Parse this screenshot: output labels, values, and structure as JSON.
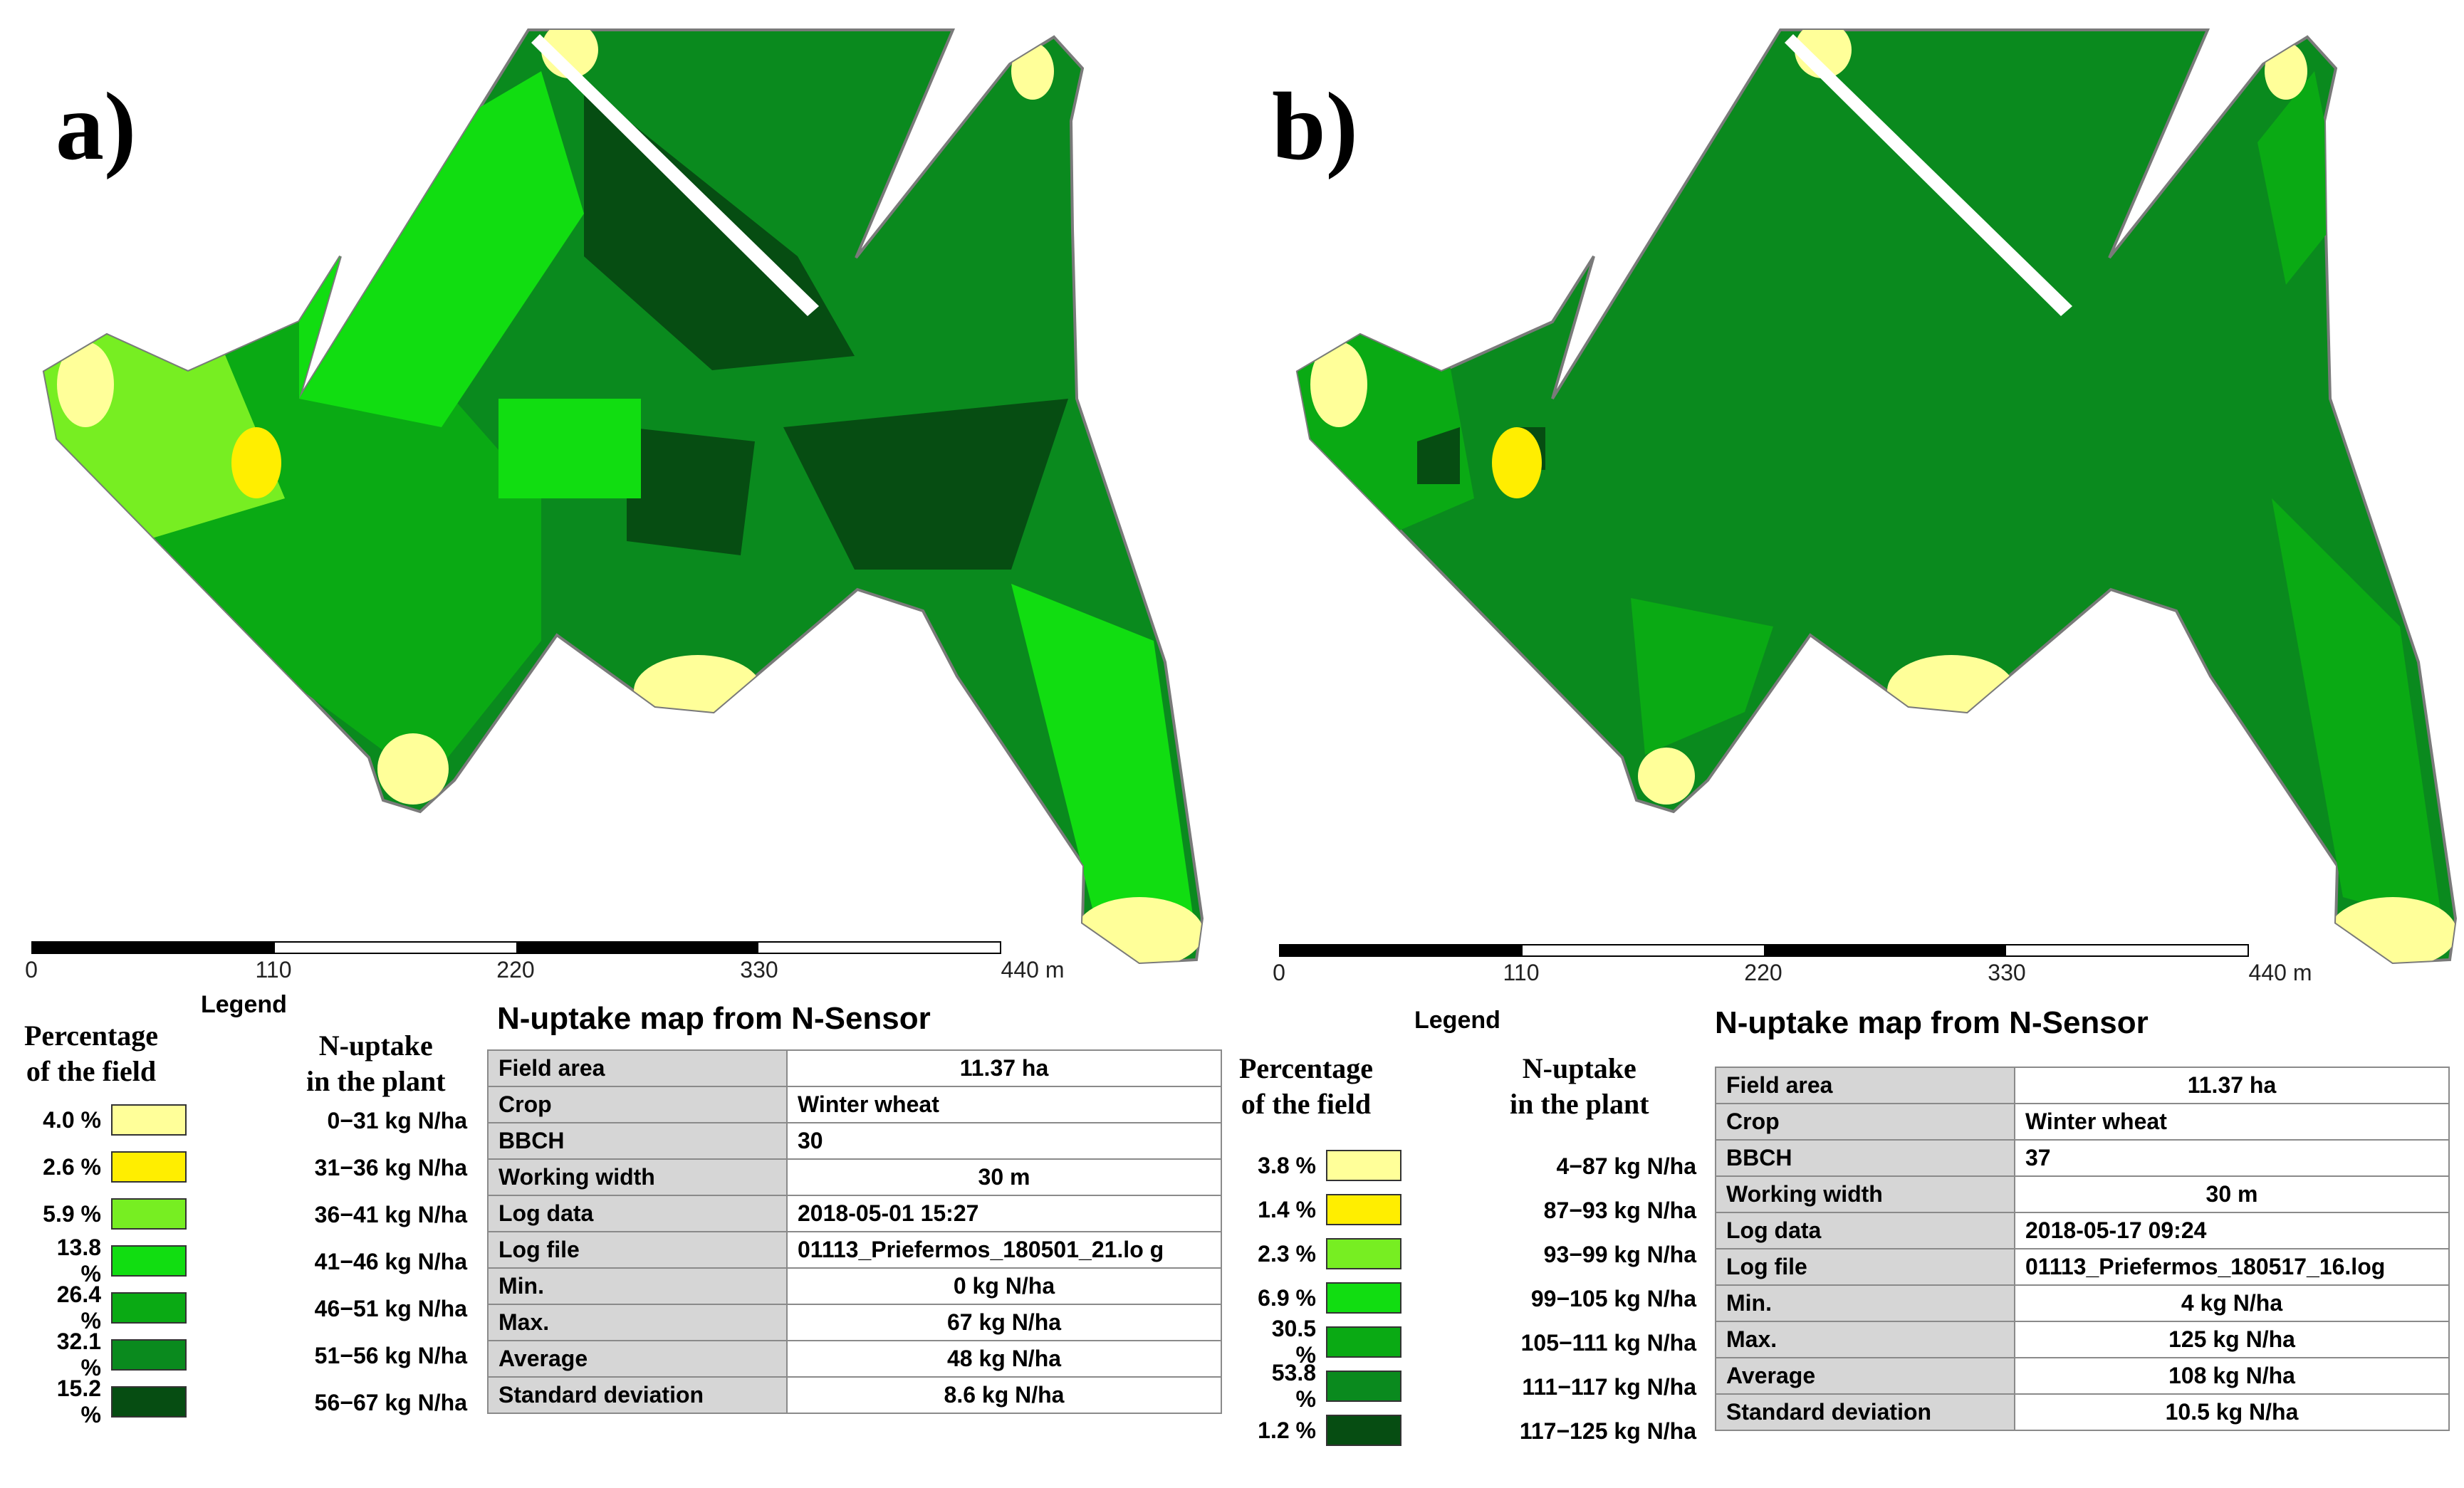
{
  "figure": {
    "panels": [
      {
        "label": "a)",
        "scale": {
          "ticks": [
            "0",
            "110",
            "220",
            "330",
            "440 m"
          ]
        },
        "legend": {
          "title": "Legend",
          "percent_header": "Percentage\nof the field",
          "uptake_header": "N-uptake\nin the plant",
          "classes": [
            {
              "percent": "4.0 %",
              "range": "0−31 kg N/ha",
              "color": "#ffff99"
            },
            {
              "percent": "2.6 %",
              "range": "31−36 kg N/ha",
              "color": "#ffee00"
            },
            {
              "percent": "5.9 %",
              "range": "36−41 kg N/ha",
              "color": "#77ee22"
            },
            {
              "percent": "13.8 %",
              "range": "41−46 kg N/ha",
              "color": "#11dd11"
            },
            {
              "percent": "26.4 %",
              "range": "46−51 kg N/ha",
              "color": "#0aaa14"
            },
            {
              "percent": "32.1 %",
              "range": "51−56 kg N/ha",
              "color": "#0a8a1e"
            },
            {
              "percent": "15.2 %",
              "range": "56−67 kg N/ha",
              "color": "#064d12"
            }
          ]
        },
        "info": {
          "title": "N-uptake map from N-Sensor",
          "rows": [
            {
              "key": "Field area",
              "value": "11.37 ha"
            },
            {
              "key": "Crop",
              "value": "Winter wheat"
            },
            {
              "key": "BBCH",
              "value": "30"
            },
            {
              "key": "Working width",
              "value": "30 m"
            },
            {
              "key": "Log data",
              "value": "2018-05-01 15:27"
            },
            {
              "key": "Log file",
              "value": "01113_Priefermos_180501_21.lo g"
            },
            {
              "key": "Min.",
              "value": "0 kg N/ha"
            },
            {
              "key": "Max.",
              "value": "67 kg N/ha"
            },
            {
              "key": "Average",
              "value": "48 kg N/ha"
            },
            {
              "key": "Standard deviation",
              "value": "8.6 kg N/ha"
            }
          ]
        }
      },
      {
        "label": "b)",
        "scale": {
          "ticks": [
            "0",
            "110",
            "220",
            "330",
            "440 m"
          ]
        },
        "legend": {
          "title": "Legend",
          "percent_header": "Percentage\nof the field",
          "uptake_header": "N-uptake\nin the plant",
          "classes": [
            {
              "percent": "3.8 %",
              "range": "4−87 kg N/ha",
              "color": "#ffff99"
            },
            {
              "percent": "1.4 %",
              "range": "87−93 kg N/ha",
              "color": "#ffee00"
            },
            {
              "percent": "2.3 %",
              "range": "93−99 kg N/ha",
              "color": "#77ee22"
            },
            {
              "percent": "6.9 %",
              "range": "99−105 kg N/ha",
              "color": "#11dd11"
            },
            {
              "percent": "30.5 %",
              "range": "105−111 kg N/ha",
              "color": "#0aaa14"
            },
            {
              "percent": "53.8 %",
              "range": "111−117 kg N/ha",
              "color": "#0a8a1e"
            },
            {
              "percent": "1.2 %",
              "range": "117−125 kg N/ha",
              "color": "#064d12"
            }
          ]
        },
        "info": {
          "title": "N-uptake map from N-Sensor",
          "rows": [
            {
              "key": "Field area",
              "value": "11.37 ha"
            },
            {
              "key": "Crop",
              "value": "Winter wheat"
            },
            {
              "key": "BBCH",
              "value": "37"
            },
            {
              "key": "Working width",
              "value": "30 m"
            },
            {
              "key": "Log data",
              "value": "2018-05-17 09:24"
            },
            {
              "key": "Log file",
              "value": "01113_Priefermos_180517_16.log"
            },
            {
              "key": "Min.",
              "value": "4 kg N/ha"
            },
            {
              "key": "Max.",
              "value": "125 kg N/ha"
            },
            {
              "key": "Average",
              "value": "108 kg N/ha"
            },
            {
              "key": "Standard deviation",
              "value": "10.5 kg N/ha"
            }
          ]
        }
      }
    ]
  }
}
